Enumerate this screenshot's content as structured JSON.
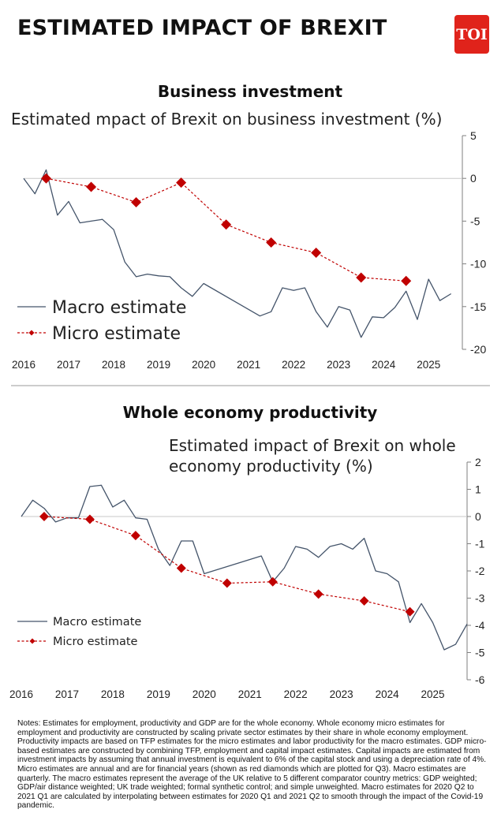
{
  "header": {
    "title": "ESTIMATED IMPACT OF BREXIT",
    "logo_text": "TOI"
  },
  "colors": {
    "macro": "#44546a",
    "micro": "#c00000",
    "axis": "#7f7f7f",
    "divider": "#999999"
  },
  "chart_data": [
    {
      "type": "line",
      "title": "Business investment",
      "subtitle": "Estimated mpact of Brexit on business investment (%)",
      "xlabel": "",
      "ylabel": "",
      "xlim": [
        2016,
        2025.75
      ],
      "ylim": [
        -20,
        5
      ],
      "x_ticks": [
        2016,
        2017,
        2018,
        2019,
        2020,
        2021,
        2022,
        2023,
        2024,
        2025
      ],
      "y_ticks": [
        5,
        0,
        -5,
        -10,
        -15,
        -20
      ],
      "legend_position": "bottom-left",
      "series": [
        {
          "name": "Macro estimate",
          "style": "line",
          "x": [
            2016.0,
            2016.25,
            2016.5,
            2016.75,
            2017.0,
            2017.25,
            2017.5,
            2017.75,
            2018.0,
            2018.25,
            2018.5,
            2018.75,
            2019.0,
            2019.25,
            2019.5,
            2019.75,
            2020.0,
            2021.25,
            2021.5,
            2021.75,
            2022.0,
            2022.25,
            2022.5,
            2022.75,
            2023.0,
            2023.25,
            2023.5,
            2023.75,
            2024.0,
            2024.25,
            2024.5,
            2024.75,
            2025.0,
            2025.25,
            2025.5
          ],
          "y": [
            0,
            -1.8,
            1,
            -4.3,
            -2.7,
            -5.2,
            -5,
            -4.8,
            -6,
            -9.8,
            -11.5,
            -11.2,
            -11.4,
            -11.5,
            -12.8,
            -13.8,
            -12.3,
            -16.1,
            -15.6,
            -12.8,
            -13.1,
            -12.8,
            -15.6,
            -17.4,
            -15,
            -15.4,
            -18.6,
            -16.2,
            -16.3,
            -15.1,
            -13.2,
            -16.5,
            -11.8,
            -14.3,
            -13.5
          ]
        },
        {
          "name": "Micro estimate",
          "style": "dashed-diamond",
          "x": [
            2016.5,
            2017.5,
            2018.5,
            2019.5,
            2020.5,
            2021.5,
            2022.5,
            2023.5,
            2024.5
          ],
          "y": [
            0,
            -1,
            -2.8,
            -0.5,
            -5.4,
            -7.5,
            -8.7,
            -11.6,
            -12
          ]
        }
      ]
    },
    {
      "type": "line",
      "title": "Whole economy productivity",
      "subtitle_lines": [
        "Estimated impact of Brexit on whole",
        "economy productivity (%)"
      ],
      "xlabel": "",
      "ylabel": "",
      "xlim": [
        2016,
        2025.75
      ],
      "ylim": [
        -6,
        2
      ],
      "x_ticks": [
        2016,
        2017,
        2018,
        2019,
        2020,
        2021,
        2022,
        2023,
        2024,
        2025
      ],
      "y_ticks": [
        2,
        1,
        0,
        -1,
        -2,
        -3,
        -4,
        -5,
        -6
      ],
      "legend_position": "bottom-left",
      "series": [
        {
          "name": "Macro estimate",
          "style": "line",
          "x": [
            2016.0,
            2016.25,
            2016.5,
            2016.75,
            2017.0,
            2017.25,
            2017.5,
            2017.75,
            2018.0,
            2018.25,
            2018.5,
            2018.75,
            2019.0,
            2019.25,
            2019.5,
            2019.75,
            2020.0,
            2021.25,
            2021.5,
            2021.75,
            2022.0,
            2022.25,
            2022.5,
            2022.75,
            2023.0,
            2023.25,
            2023.5,
            2023.75,
            2024.0,
            2024.25,
            2024.5,
            2024.75,
            2025.0,
            2025.25,
            2025.5,
            2025.75
          ],
          "y": [
            0,
            0.6,
            0.3,
            -0.2,
            -0.05,
            -0.05,
            1.1,
            1.15,
            0.35,
            0.6,
            -0.05,
            -0.1,
            -1.2,
            -1.8,
            -0.9,
            -0.9,
            -2.1,
            -1.45,
            -2.4,
            -1.9,
            -1.1,
            -1.2,
            -1.5,
            -1.1,
            -1.0,
            -1.2,
            -0.8,
            -2.0,
            -2.1,
            -2.4,
            -3.9,
            -3.2,
            -3.9,
            -4.9,
            -4.7,
            -3.95
          ]
        },
        {
          "name": "Micro estimate",
          "style": "dashed-diamond",
          "x": [
            2016.5,
            2017.5,
            2018.5,
            2019.5,
            2020.5,
            2021.5,
            2022.5,
            2023.5,
            2024.5
          ],
          "y": [
            0,
            -0.1,
            -0.7,
            -1.9,
            -2.45,
            -2.4,
            -2.85,
            -3.1,
            -3.5
          ]
        }
      ]
    }
  ],
  "notes": "Notes: Estimates for employment, productivity and GDP are for the whole economy. Whole economy micro estimates for employment and productivity are constructed by scaling private sector estimates by their share in whole economy employment. Productivity impacts are based on TFP estimates for the micro estimates and labor productivity for the macro estimates. GDP micro-based estimates are constructed by combining TFP, employment and capital impact estimates. Capital impacts are estimated from investment impacts by assuming that annual investment is equivalent to 6% of the capital stock and using a depreciation rate of 4%. Micro estimates are annual and are for financial years (shown as red diamonds which are plotted for Q3). Macro estimates are quarterly. The macro estimates represent the average of the UK relative to 5 different comparator country metrics: GDP weighted; GDP/air distance weighted; UK trade weighted; formal synthetic control; and simple unweighted. Macro estimates for 2020 Q2 to 2021 Q1 are calculated by interpolating between estimates for 2020 Q1 and 2021 Q2 to smooth through the impact of the Covid-19 pandemic."
}
